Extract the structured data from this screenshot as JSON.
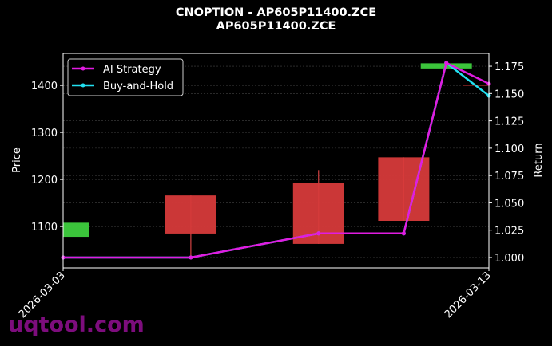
{
  "chart_data": {
    "type": "candlestick+line",
    "title": "CNOPTION - AP605P11400.ZCE",
    "subtitle": "AP605P11400.ZCE",
    "ylabel": "Price",
    "y2label": "Return",
    "ylim": [
      1012,
      1468
    ],
    "y2lim": [
      0.9905,
      1.1867
    ],
    "xlim": [
      "2026-03-03",
      "2026-03-13"
    ],
    "x_ticks": [
      "2026-03-03",
      "2026-03-13"
    ],
    "y_ticks": [
      1100,
      1200,
      1300,
      1400
    ],
    "y2_ticks": [
      "1.000",
      "1.025",
      "1.050",
      "1.075",
      "1.100",
      "1.125",
      "1.150",
      "1.175"
    ],
    "grid": true,
    "legend_placement": "upper-left",
    "candles": [
      {
        "date": "2026-03-03",
        "open": 1078,
        "high": 1108,
        "low": 1078,
        "close": 1108
      },
      {
        "date": "2026-03-06",
        "open": 1166,
        "high": 1166,
        "low": 1036,
        "close": 1085
      },
      {
        "date": "2026-03-09",
        "open": 1192,
        "high": 1220,
        "low": 1063,
        "close": 1063
      },
      {
        "date": "2026-03-11",
        "open": 1247,
        "high": 1247,
        "low": 1112,
        "close": 1112
      },
      {
        "date": "2026-03-12",
        "open": 1436,
        "high": 1447,
        "low": 1436,
        "close": 1447
      },
      {
        "date": "2026-03-13",
        "open": 1401,
        "high": 1401,
        "low": 1400,
        "close": 1400
      }
    ],
    "series": [
      {
        "name": "AI Strategy",
        "color": "#e11be1",
        "x": [
          "2026-03-03",
          "2026-03-06",
          "2026-03-09",
          "2026-03-11",
          "2026-03-12",
          "2026-03-13"
        ],
        "values": [
          1.0,
          1.0,
          1.022,
          1.022,
          1.178,
          1.159
        ]
      },
      {
        "name": "Buy-and-Hold",
        "color": "#22e0f0",
        "x": [
          "2026-03-03",
          "2026-03-06",
          "2026-03-09",
          "2026-03-11",
          "2026-03-12",
          "2026-03-13"
        ],
        "values": [
          1.0,
          1.0,
          1.022,
          1.022,
          1.178,
          1.148
        ]
      }
    ],
    "colors": {
      "up": "#3ecf3e",
      "down": "#d63a3a"
    }
  },
  "watermark": "uqtool.com"
}
